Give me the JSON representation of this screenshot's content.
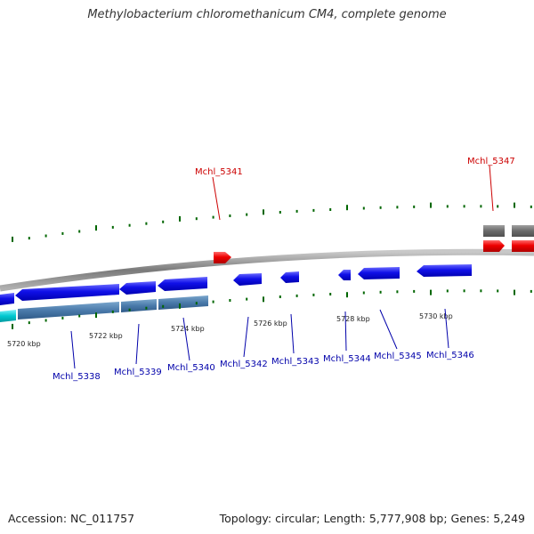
{
  "header": {
    "title": "Methylobacterium chloromethanicum CM4, complete genome"
  },
  "footer": {
    "accession": "Accession: NC_011757",
    "topology": "Topology: circular; Length: 5,777,908 bp; Genes: 5,249"
  },
  "colors": {
    "forward_gene": "#e00000",
    "reverse_gene": "#0000e0",
    "backbone": "#888888",
    "tick": "#006600",
    "forward_label": "#cc0000",
    "reverse_label": "#0000aa",
    "rna_gene": "#00c8d0",
    "operon_band": "#4a7aaa"
  },
  "scale": {
    "ticks": [
      "5720 kbp",
      "5722 kbp",
      "5724 kbp",
      "5726 kbp",
      "5728 kbp",
      "5730 kbp"
    ]
  },
  "genes": {
    "forward": [
      {
        "label": "Mchl_5341"
      },
      {
        "label": "Mchl_5347"
      }
    ],
    "reverse": [
      {
        "label": "Mchl_5338"
      },
      {
        "label": "Mchl_5339"
      },
      {
        "label": "Mchl_5340"
      },
      {
        "label": "Mchl_5342"
      },
      {
        "label": "Mchl_5343"
      },
      {
        "label": "Mchl_5344"
      },
      {
        "label": "Mchl_5345"
      },
      {
        "label": "Mchl_5346"
      }
    ]
  }
}
